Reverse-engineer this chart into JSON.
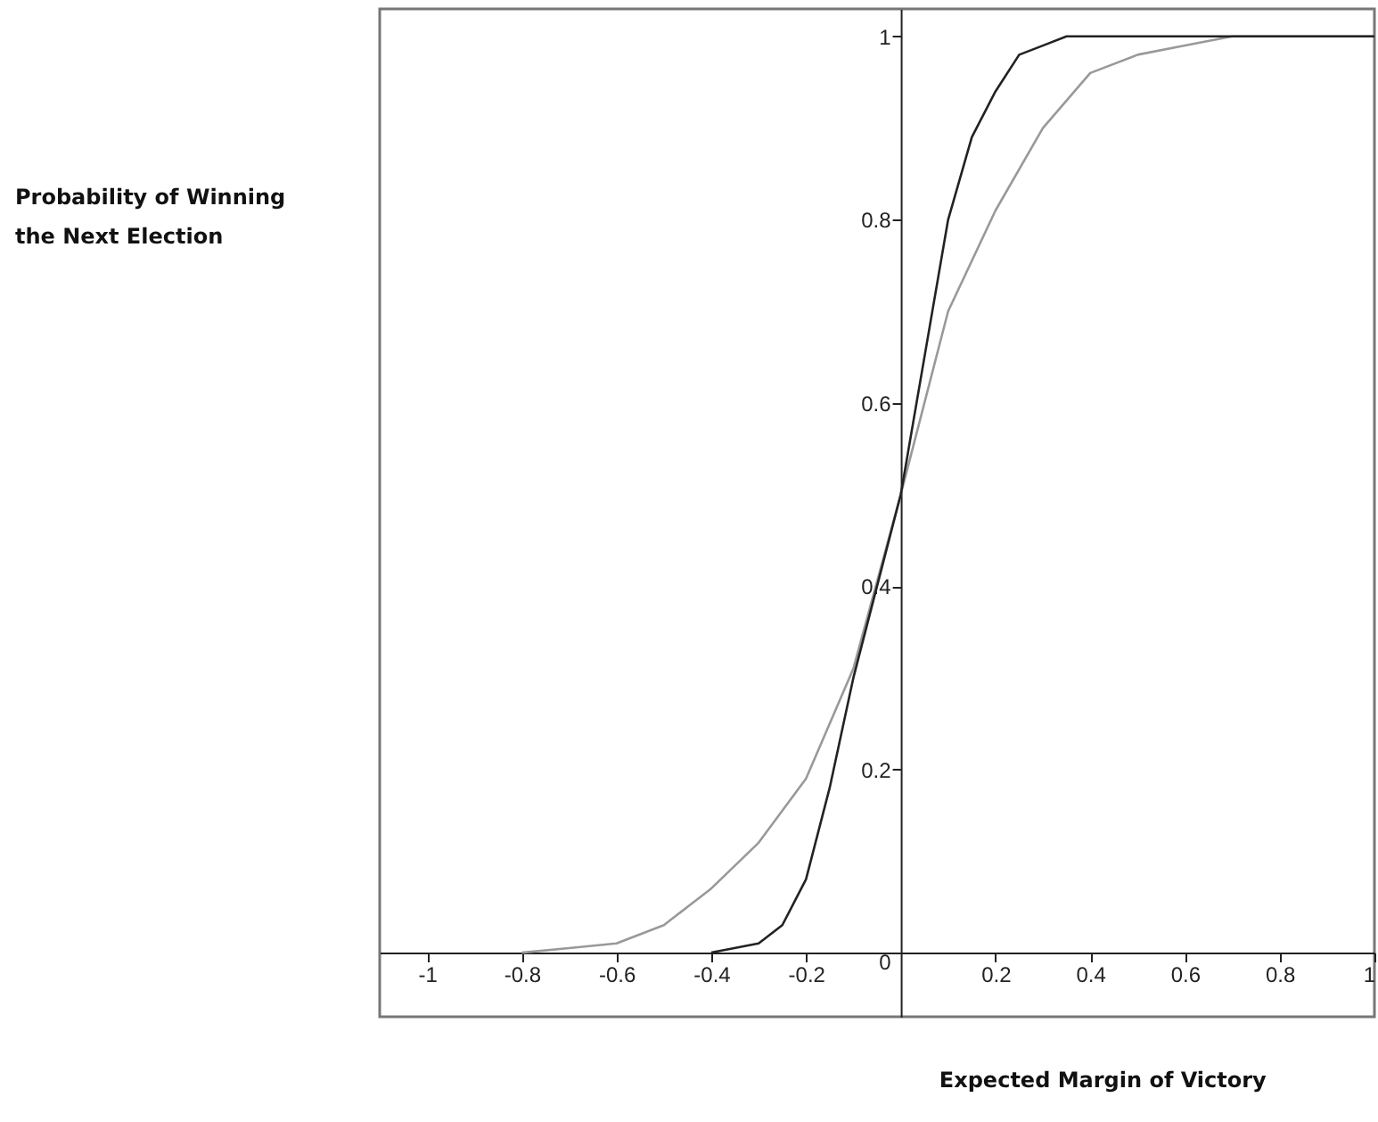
{
  "chart_data": {
    "type": "line",
    "xlabel": "Expected Margin of Victory",
    "ylabel": "Probability of Winning the Next Election",
    "xlim": [
      -1.1,
      1.0
    ],
    "ylim": [
      -0.07,
      1.03
    ],
    "xticks": [
      -1,
      -0.8,
      -0.6,
      -0.4,
      -0.2,
      0.2,
      0.4,
      0.6,
      0.8,
      1
    ],
    "yticks": [
      0,
      0.2,
      0.4,
      0.6,
      0.8,
      1
    ],
    "grid": false,
    "marker": "none",
    "line_style": "solid",
    "series": [
      {
        "color": "#999999",
        "x": [
          -0.8,
          -0.7,
          -0.6,
          -0.5,
          -0.4,
          -0.3,
          -0.2,
          -0.1,
          0,
          0.1,
          0.2,
          0.3,
          0.4,
          0.5,
          0.6,
          0.7,
          0.8,
          1
        ],
        "values": [
          0.0,
          0.005,
          0.01,
          0.03,
          0.07,
          0.12,
          0.19,
          0.31,
          0.5,
          0.7,
          0.81,
          0.9,
          0.96,
          0.98,
          0.99,
          1.0,
          1.0,
          1.0
        ]
      },
      {
        "color": "#222222",
        "x": [
          -0.4,
          -0.3,
          -0.25,
          -0.2,
          -0.15,
          -0.1,
          -0.05,
          0,
          0.05,
          0.1,
          0.15,
          0.2,
          0.25,
          0.3,
          0.35,
          0.5,
          1
        ],
        "values": [
          0.0,
          0.01,
          0.03,
          0.08,
          0.18,
          0.3,
          0.4,
          0.5,
          0.65,
          0.8,
          0.89,
          0.94,
          0.98,
          0.99,
          1.0,
          1.0,
          1.0
        ]
      }
    ]
  }
}
